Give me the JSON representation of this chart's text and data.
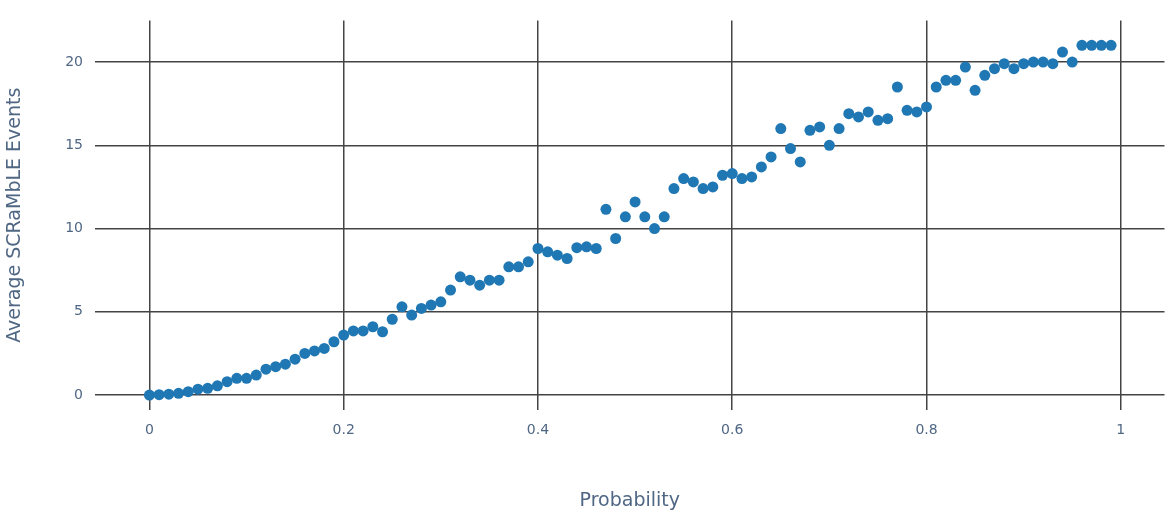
{
  "chart_data": {
    "type": "scatter",
    "xlabel": "Probability",
    "ylabel": "Average SCRaMbLE Events",
    "xlim": [
      -0.056,
      1.045
    ],
    "xticks": [
      0,
      0.2,
      0.4,
      0.6,
      0.8,
      1
    ],
    "ylim": [
      -0.9,
      22.5
    ],
    "yticks": [
      0,
      5,
      10,
      15,
      20
    ],
    "grid": true,
    "legend": false,
    "marker": "circle",
    "series": [
      {
        "color": "#1f77b4",
        "x": [
          0,
          0.01,
          0.02,
          0.03,
          0.04,
          0.05,
          0.06,
          0.07,
          0.08,
          0.09,
          0.1,
          0.11,
          0.12,
          0.13,
          0.14,
          0.15,
          0.16,
          0.17,
          0.18,
          0.19,
          0.2,
          0.21,
          0.22,
          0.23,
          0.24,
          0.25,
          0.26,
          0.27,
          0.28,
          0.29,
          0.3,
          0.31,
          0.32,
          0.33,
          0.34,
          0.35,
          0.36,
          0.37,
          0.38,
          0.39,
          0.4,
          0.41,
          0.42,
          0.43,
          0.44,
          0.45,
          0.46,
          0.47,
          0.48,
          0.49,
          0.5,
          0.51,
          0.52,
          0.53,
          0.54,
          0.55,
          0.56,
          0.57,
          0.58,
          0.59,
          0.6,
          0.61,
          0.62,
          0.63,
          0.64,
          0.65,
          0.66,
          0.67,
          0.68,
          0.69,
          0.7,
          0.71,
          0.72,
          0.73,
          0.74,
          0.75,
          0.76,
          0.77,
          0.78,
          0.79,
          0.8,
          0.81,
          0.82,
          0.83,
          0.84,
          0.85,
          0.86,
          0.87,
          0.88,
          0.89,
          0.9,
          0.91,
          0.92,
          0.93,
          0.94,
          0.95,
          0.96,
          0.97,
          0.98,
          0.99
        ],
        "values": [
          0,
          0.02,
          0.05,
          0.1,
          0.2,
          0.35,
          0.4,
          0.55,
          0.8,
          1.0,
          1.0,
          1.2,
          1.55,
          1.7,
          1.85,
          2.15,
          2.5,
          2.65,
          2.8,
          3.2,
          3.6,
          3.85,
          3.85,
          4.1,
          3.8,
          4.55,
          5.3,
          4.8,
          5.2,
          5.4,
          5.6,
          6.3,
          7.1,
          6.9,
          6.6,
          6.9,
          6.9,
          7.7,
          7.7,
          8.0,
          8.8,
          8.6,
          8.4,
          8.2,
          8.85,
          8.9,
          8.8,
          11.15,
          9.4,
          10.7,
          11.6,
          10.7,
          10.0,
          10.7,
          12.4,
          13.0,
          12.8,
          12.4,
          12.5,
          13.2,
          13.3,
          13.0,
          13.1,
          13.7,
          14.3,
          16.0,
          14.8,
          14.0,
          15.9,
          16.1,
          15.0,
          16.0,
          16.9,
          16.7,
          17.0,
          16.5,
          16.6,
          18.5,
          17.1,
          17.0,
          17.3,
          18.5,
          18.9,
          18.9,
          19.7,
          18.3,
          19.2,
          19.6,
          19.9,
          19.6,
          19.9,
          20.0,
          20.0,
          19.9,
          20.6,
          20.0,
          21.0,
          21.0,
          21.0,
          21.0
        ]
      }
    ]
  }
}
